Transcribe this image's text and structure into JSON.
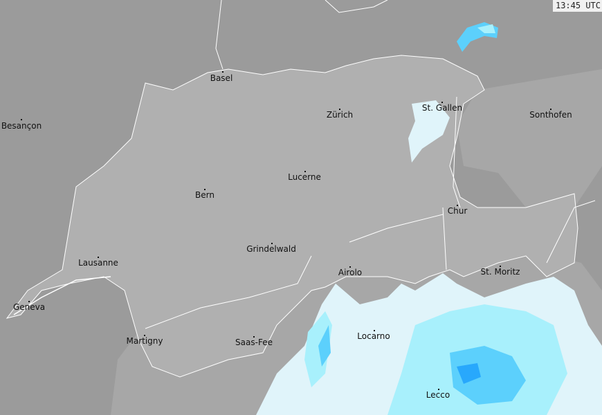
{
  "timestamp": "13:45 UTC",
  "colors": {
    "background": "#9b9b9b",
    "neighbor_region": "#a7a7a7",
    "switzerland": "#b0b0b0",
    "border": "#ffffff",
    "precip_light": "#e0f4fa",
    "precip_moderate": "#a8f0fc",
    "precip_heavy": "#5cd0fc",
    "precip_intense": "#28a8fc"
  },
  "cities": [
    {
      "name": "Basel"
    },
    {
      "name": "Zürich"
    },
    {
      "name": "St. Gallen"
    },
    {
      "name": "Besançon"
    },
    {
      "name": "Sonthofen"
    },
    {
      "name": "Lucerne"
    },
    {
      "name": "Bern"
    },
    {
      "name": "Chur"
    },
    {
      "name": "Grindelwald"
    },
    {
      "name": "Lausanne"
    },
    {
      "name": "Airolo"
    },
    {
      "name": "St. Moritz"
    },
    {
      "name": "Geneva"
    },
    {
      "name": "Martigny"
    },
    {
      "name": "Saas-Fee"
    },
    {
      "name": "Locarno"
    },
    {
      "name": "Lecco"
    }
  ]
}
